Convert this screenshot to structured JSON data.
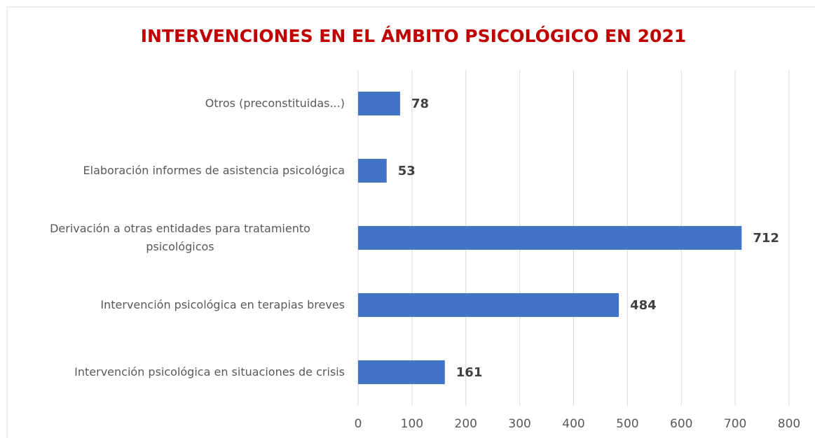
{
  "chart_data": {
    "type": "barh",
    "title": "INTERVENCIONES EN EL ÁMBITO PSICOLÓGICO EN 2021",
    "categories": [
      "Otros (preconstituidas...)",
      "Elaboración informes de asistencia psicológica",
      "Derivación a otras entidades para tratamiento psicológicos",
      "Intervención psicológica en terapias breves",
      "Intervención psicológica en situaciones de crisis"
    ],
    "values": [
      78,
      53,
      712,
      484,
      161
    ],
    "color": "#4472c4",
    "xlim": [
      0,
      800
    ],
    "xticks": [
      0,
      100,
      200,
      300,
      400,
      500,
      600,
      700,
      800
    ],
    "grid": true
  }
}
